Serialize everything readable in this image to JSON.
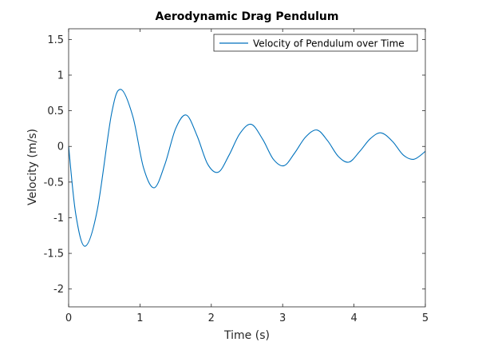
{
  "chart_data": {
    "type": "line",
    "title": "Aerodynamic Drag Pendulum",
    "xlabel": "Time (s)",
    "ylabel": "Velocity (m/s)",
    "xlim": [
      0,
      5
    ],
    "ylim": [
      -2.25,
      1.65
    ],
    "xticks": [
      0,
      1,
      2,
      3,
      4,
      5
    ],
    "xtick_labels": [
      "0",
      "1",
      "2",
      "3",
      "4",
      "5"
    ],
    "yticks": [
      1.5,
      1,
      0.5,
      0,
      -0.5,
      -1,
      -1.5,
      -2
    ],
    "ytick_labels": [
      "1.5",
      "1",
      "0.5",
      "0",
      "-0.5",
      "-1",
      "-1.5",
      "-2"
    ],
    "grid": false,
    "box": true,
    "legend_location": "top-right",
    "series": [
      {
        "name": "Velocity of Pendulum over Time",
        "color": "#0072bd",
        "x": [
          0,
          0.1,
          0.23,
          0.4,
          0.6,
          0.73,
          0.9,
          1.05,
          1.2,
          1.35,
          1.5,
          1.65,
          1.8,
          1.95,
          2.1,
          2.25,
          2.4,
          2.56,
          2.72,
          2.87,
          3.02,
          3.17,
          3.32,
          3.48,
          3.63,
          3.78,
          3.93,
          4.08,
          4.23,
          4.38,
          4.54,
          4.69,
          4.84,
          5.0
        ],
        "y": [
          0,
          -0.95,
          -1.4,
          -0.9,
          0.45,
          0.8,
          0.42,
          -0.3,
          -0.58,
          -0.25,
          0.25,
          0.44,
          0.15,
          -0.25,
          -0.36,
          -0.12,
          0.18,
          0.31,
          0.1,
          -0.18,
          -0.27,
          -0.09,
          0.13,
          0.23,
          0.08,
          -0.14,
          -0.22,
          -0.07,
          0.11,
          0.19,
          0.07,
          -0.12,
          -0.18,
          -0.07
        ]
      }
    ]
  }
}
